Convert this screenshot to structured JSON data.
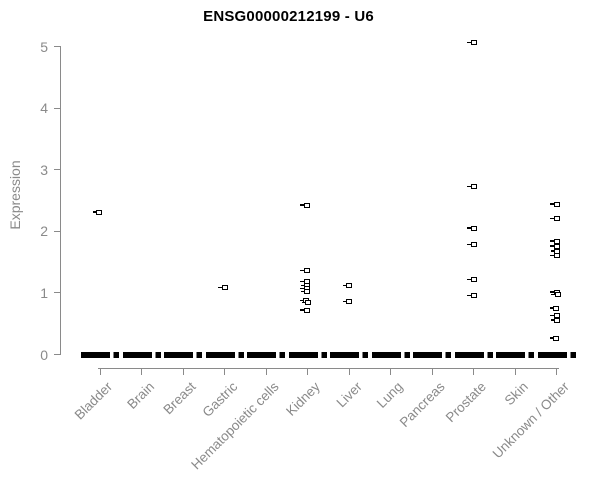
{
  "chart_data": {
    "type": "scatter",
    "title": "ENSG00000212199 - U6",
    "xlabel": "",
    "ylabel": "Expression",
    "ylim": [
      0,
      5
    ],
    "yticks": [
      0,
      1,
      2,
      3,
      4,
      5
    ],
    "grid": false,
    "legend": false,
    "marker": "open-square",
    "note": "strip plot; dense cluster of zero-expression samples drawn as thick black dash at y=0 for every category",
    "categories": [
      "Bladder",
      "Brain",
      "Breast",
      "Gastric",
      "Hematopoietic cells",
      "Kidney",
      "Liver",
      "Lung",
      "Pancreas",
      "Prostate",
      "Skin",
      "Unknown / Other"
    ],
    "series": [
      {
        "name": "Bladder",
        "zero_cluster": true,
        "values": [
          2.31
        ],
        "jitter": [
          -1
        ]
      },
      {
        "name": "Brain",
        "zero_cluster": true,
        "values": [],
        "jitter": []
      },
      {
        "name": "Breast",
        "zero_cluster": true,
        "values": [],
        "jitter": []
      },
      {
        "name": "Gastric",
        "zero_cluster": true,
        "values": [
          1.08
        ],
        "jitter": [
          0
        ]
      },
      {
        "name": "Hematopoietic cells",
        "zero_cluster": true,
        "values": [],
        "jitter": []
      },
      {
        "name": "Kidney",
        "zero_cluster": true,
        "values": [
          2.42,
          1.36,
          1.18,
          1.12,
          1.07,
          1.02,
          0.87,
          0.84,
          0.72
        ],
        "jitter": [
          -1,
          -1,
          -1,
          -0.5,
          -1,
          -0.5,
          -1.5,
          0.5,
          -1
        ]
      },
      {
        "name": "Liver",
        "zero_cluster": true,
        "values": [
          1.12,
          0.86
        ],
        "jitter": [
          0,
          0
        ]
      },
      {
        "name": "Lung",
        "zero_cluster": true,
        "values": [],
        "jitter": []
      },
      {
        "name": "Pancreas",
        "zero_cluster": true,
        "values": [],
        "jitter": []
      },
      {
        "name": "Prostate",
        "zero_cluster": true,
        "values": [
          5.06,
          2.72,
          2.05,
          1.78,
          1.21,
          0.95
        ],
        "jitter": [
          0,
          0,
          0,
          0,
          0,
          0
        ]
      },
      {
        "name": "Skin",
        "zero_cluster": true,
        "values": [],
        "jitter": []
      },
      {
        "name": "Unknown / Other",
        "zero_cluster": true,
        "values": [
          2.44,
          2.2,
          1.84,
          1.76,
          1.68,
          1.6,
          1.01,
          0.97,
          0.75,
          0.63,
          0.56,
          0.26
        ],
        "jitter": [
          0,
          0,
          0,
          0,
          0.5,
          0,
          0,
          1,
          -0.5,
          0,
          0.5,
          -0.5
        ]
      }
    ]
  },
  "colors": {
    "marker": "#000000",
    "axis": "#8a8a8a",
    "tick_label": "#8a8a8a",
    "title": "#000000",
    "background": "#ffffff"
  }
}
